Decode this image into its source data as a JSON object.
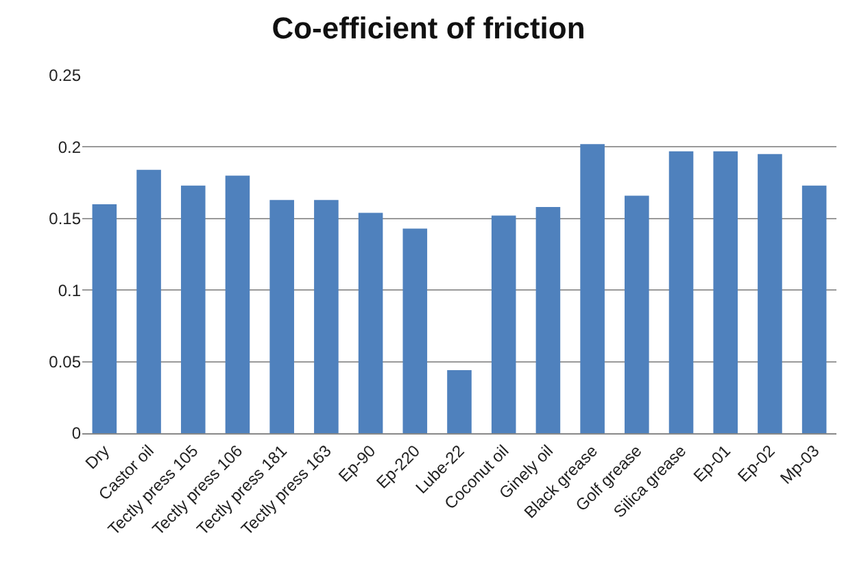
{
  "chart_data": {
    "type": "bar",
    "title": "Co-efficient of friction",
    "categories": [
      "Dry",
      "Castor oil",
      "Tectly press 105",
      "Tectly press 106",
      "Tectly press 181",
      "Tectly press 163",
      "Ep-90",
      "Ep-220",
      "Lube-22",
      "Coconut oil",
      "Ginely oil",
      "Black grease",
      "Golf grease",
      "Silica grease",
      "Ep-01",
      "Ep-02",
      "Mp-03"
    ],
    "values": [
      0.16,
      0.184,
      0.173,
      0.18,
      0.163,
      0.163,
      0.154,
      0.143,
      0.044,
      0.152,
      0.158,
      0.202,
      0.166,
      0.197,
      0.197,
      0.195,
      0.173
    ],
    "color": "#4f81bd",
    "ylim": [
      0,
      0.25
    ],
    "yticks": [
      0,
      0.05,
      0.1,
      0.15,
      0.2,
      0.25
    ],
    "grid": "y"
  }
}
